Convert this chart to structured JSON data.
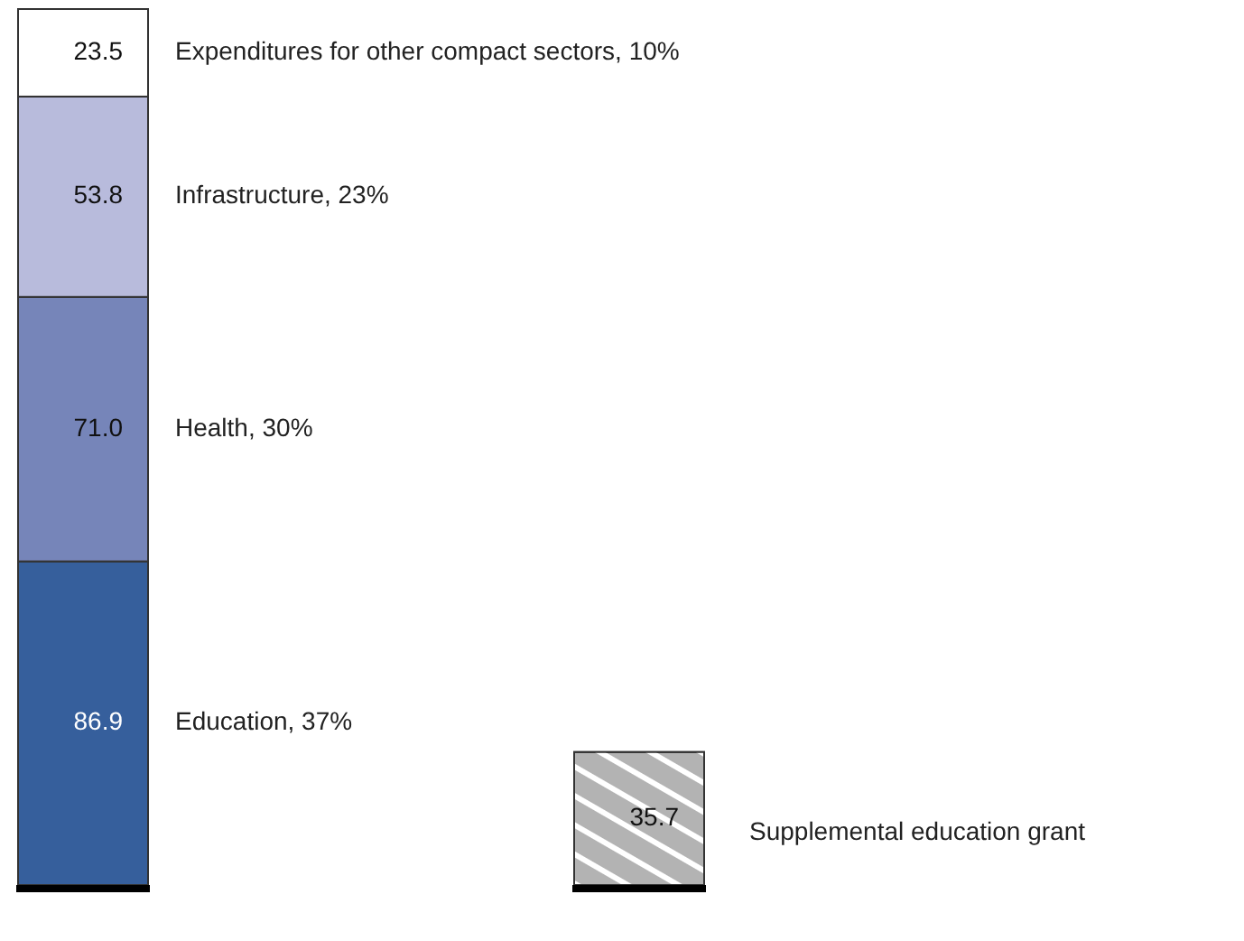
{
  "chart_data": {
    "type": "bar",
    "stacked": true,
    "relative": false,
    "categories": [
      null,
      null
    ],
    "series": [
      {
        "name": "Education, 37%",
        "color": "#365f9c",
        "values": [
          86.9,
          null
        ],
        "value_labels": [
          "86.9",
          null
        ]
      },
      {
        "name": "Health, 30%",
        "color": "#7685b9",
        "values": [
          71.0,
          null
        ],
        "value_labels": [
          "71.0",
          null
        ]
      },
      {
        "name": "Infrastructure, 23%",
        "color": "#b8bbdc",
        "values": [
          53.8,
          null
        ],
        "value_labels": [
          "53.8",
          null
        ]
      },
      {
        "name": "Expenditures for other compact sectors, 10%",
        "color": "#ffffff",
        "values": [
          23.5,
          null
        ],
        "value_labels": [
          "23.5",
          null
        ]
      },
      {
        "name": "Supplemental education grant",
        "color": "#b3b3b3",
        "values": [
          null,
          35.7
        ],
        "value_labels": [
          null,
          "35.7"
        ]
      }
    ]
  }
}
